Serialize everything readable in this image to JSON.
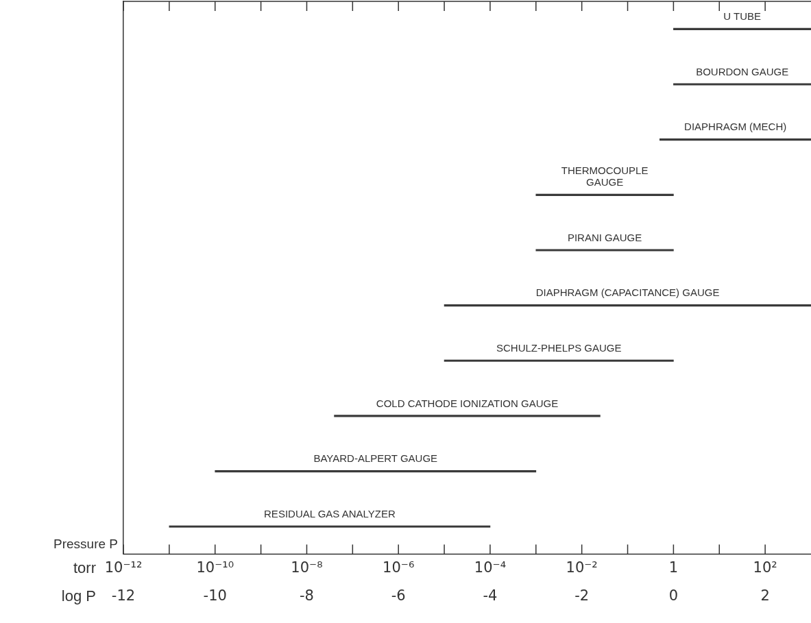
{
  "chart_data": {
    "type": "bar",
    "orientation": "horizontal",
    "tick_labels": "x",
    "color": "#3a3a3a",
    "categories": [
      "U TUBE",
      "BOURDON GAUGE",
      "DIAPHRAGM (MECH)",
      "THERMOCOUPLE\nGAUGE",
      "PIRANI GAUGE",
      "DIAPHRAGM (CAPACITANCE) GAUGE",
      "SCHULZ-PHELPS GAUGE",
      "COLD CATHODE IONIZATION GAUGE",
      "BAYARD-ALPERT GAUGE",
      "RESIDUAL GAS ANALYZER"
    ],
    "base": [
      0,
      0,
      -0.3,
      -3,
      -3,
      -5,
      -5,
      -7.4,
      -10,
      -11
    ],
    "values": [
      3,
      3,
      3.3,
      3,
      3,
      8,
      5,
      5.8,
      7,
      7
    ],
    "xlabel": "log P",
    "x2label": "torr",
    "log": "x2",
    "xlim": [
      -12,
      3
    ],
    "xticks": [
      -12,
      {
        "value": -11,
        "label": null
      },
      -10,
      {
        "value": -9,
        "label": null
      },
      -8,
      {
        "value": -7,
        "label": null
      },
      -6,
      {
        "value": -5,
        "label": null
      },
      -4,
      {
        "value": -3,
        "label": null
      },
      -2,
      {
        "value": -1,
        "label": null
      },
      0,
      {
        "value": 1,
        "label": null
      },
      2
    ],
    "x2lim": [
      1e-12,
      1000
    ],
    "x2ticks": [
      {
        "value": 1e-12,
        "label": "10⁻¹²"
      },
      {
        "value": 1e-10,
        "label": "10⁻¹⁰"
      },
      {
        "value": 1e-08,
        "label": "10⁻⁸"
      },
      {
        "value": 1e-06,
        "label": "10⁻⁶"
      },
      {
        "value": 0.0001,
        "label": "10⁻⁴"
      },
      {
        "value": 0.01,
        "label": "10⁻²"
      },
      1,
      {
        "value": 100,
        "label": "10²"
      }
    ],
    "annotations": [
      "Pressure P"
    ]
  }
}
